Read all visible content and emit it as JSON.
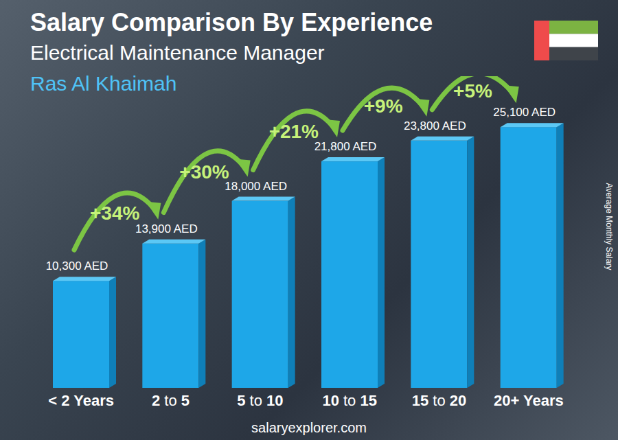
{
  "chart_data": {
    "type": "bar",
    "title": "Salary Comparison By Experience",
    "subtitle": "Electrical Maintenance Manager",
    "location": "Ras Al Khaimah",
    "y_label": "Average Monthly Salary",
    "source": "salaryexplorer.com",
    "categories": [
      "< 2 Years",
      "2 to 5",
      "5 to 10",
      "10 to 15",
      "15 to 20",
      "20+ Years"
    ],
    "values": [
      10300,
      13900,
      18000,
      21800,
      23800,
      25100
    ],
    "value_labels": [
      "10,300 AED",
      "13,900 AED",
      "18,000 AED",
      "21,800 AED",
      "23,800 AED",
      "25,100 AED"
    ],
    "increase_labels": [
      "+34%",
      "+30%",
      "+21%",
      "+9%",
      "+5%"
    ],
    "color": "#1ea7e8",
    "ylim": [
      0,
      30000
    ],
    "data_labels": true,
    "tick_labels": "x",
    "grid": false
  }
}
